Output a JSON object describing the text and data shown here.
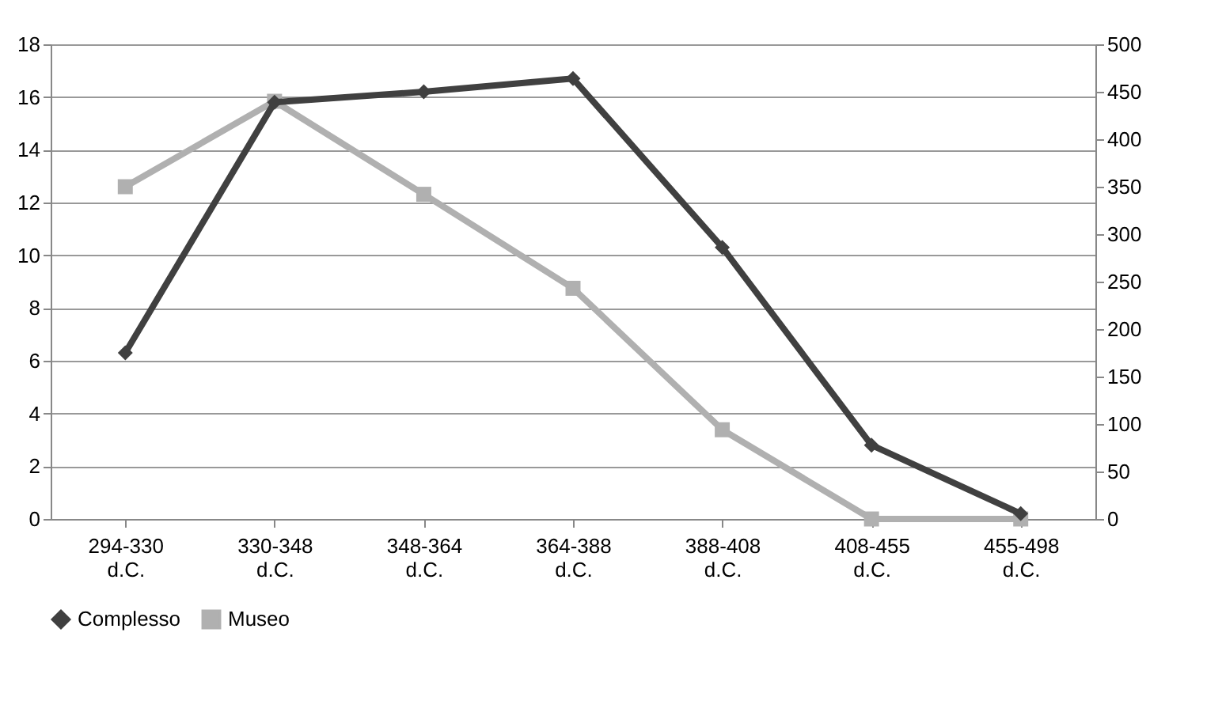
{
  "chart_data": {
    "type": "line",
    "categories": [
      "294-330 d.C.",
      "330-348 d.C.",
      "348-364 d.C.",
      "364-388 d.C.",
      "388-408 d.C.",
      "408-455 d.C.",
      "455-498 d.C."
    ],
    "series": [
      {
        "name": "Complesso",
        "color": "#404040",
        "marker": "diamond",
        "values": [
          6.3,
          15.8,
          16.2,
          16.7,
          10.3,
          2.8,
          0.2
        ]
      },
      {
        "name": "Museo",
        "color": "#b0b0b0",
        "marker": "square",
        "axis": "y2",
        "values": [
          350,
          440,
          342,
          243,
          94,
          0,
          0
        ]
      }
    ],
    "ylim": [
      0,
      18
    ],
    "yticks": [
      0,
      2,
      4,
      6,
      8,
      10,
      12,
      14,
      16,
      18
    ],
    "y2lim": [
      0,
      500
    ],
    "y2ticks": [
      0,
      50,
      100,
      150,
      200,
      250,
      300,
      350,
      400,
      450,
      500
    ],
    "grid": "y",
    "legend": "bottom",
    "line_style": "solid"
  }
}
